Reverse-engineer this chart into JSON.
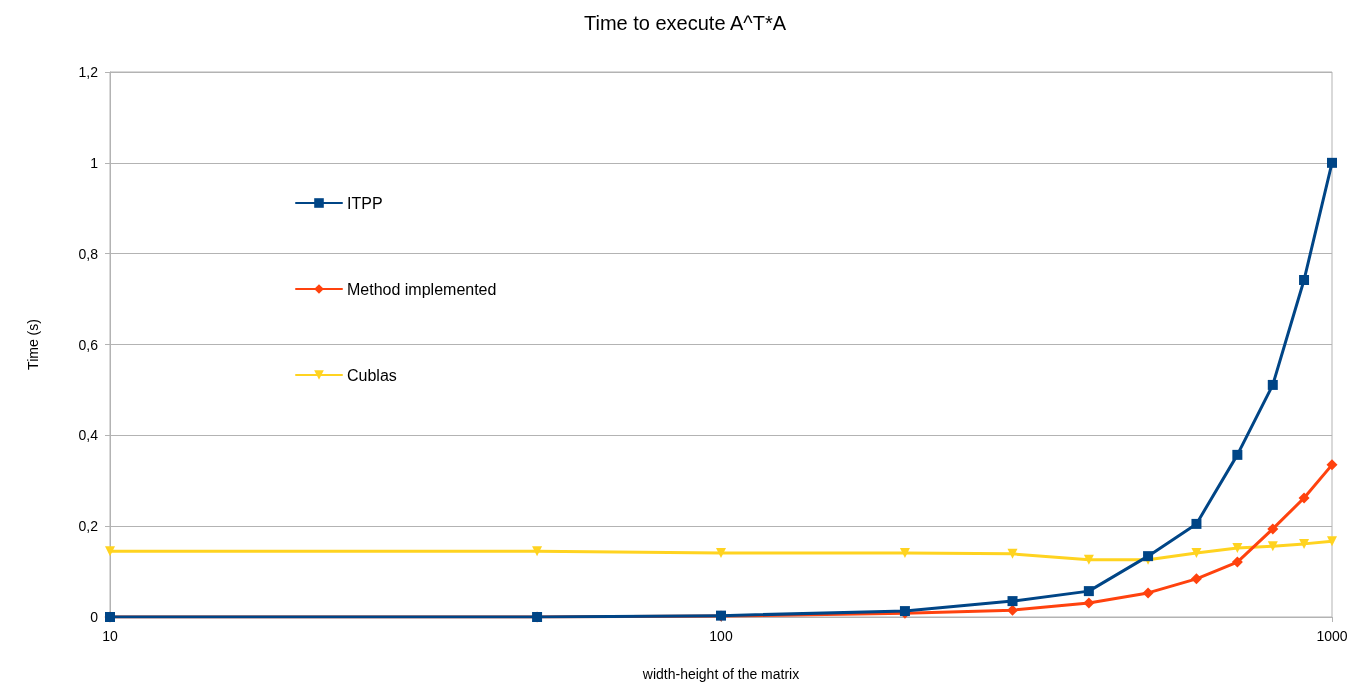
{
  "chart_data": {
    "type": "line",
    "title": "Time to execute A^T*A",
    "xlabel": "width-height of the matrix",
    "ylabel": "Time (s)",
    "x": [
      10,
      50,
      100,
      200,
      300,
      400,
      500,
      600,
      700,
      800,
      900,
      1000
    ],
    "series": [
      {
        "name": "ITPP",
        "color": "#004586",
        "marker": "square",
        "values": [
          0,
          0,
          0.003,
          0.013,
          0.035,
          0.057,
          0.134,
          0.205,
          0.357,
          0.511,
          0.742,
          1.0
        ]
      },
      {
        "name": "Method implemented",
        "color": "#ff420e",
        "marker": "diamond",
        "values": [
          0,
          0,
          0.002,
          0.008,
          0.015,
          0.031,
          0.053,
          0.084,
          0.121,
          0.194,
          0.262,
          0.335
        ]
      },
      {
        "name": "Cublas",
        "color": "#ffd320",
        "marker": "triangle",
        "values": [
          0.145,
          0.145,
          0.141,
          0.141,
          0.139,
          0.126,
          0.126,
          0.141,
          0.152,
          0.156,
          0.161,
          0.167
        ]
      }
    ],
    "log": "x",
    "xlim": [
      10,
      1000
    ],
    "xticks": [
      10,
      100,
      1000
    ],
    "ylim": [
      0,
      1.2
    ],
    "yticks": [
      {
        "value": 0,
        "label": "0"
      },
      {
        "value": 0.2,
        "label": "0,2"
      },
      {
        "value": 0.4,
        "label": "0,4"
      },
      {
        "value": 0.6,
        "label": "0,6"
      },
      {
        "value": 0.8,
        "label": "0,8"
      },
      {
        "value": 1,
        "label": "1"
      },
      {
        "value": 1.2,
        "label": "1,2"
      }
    ],
    "grid": "y",
    "legend": "left",
    "line_style": "solid"
  }
}
